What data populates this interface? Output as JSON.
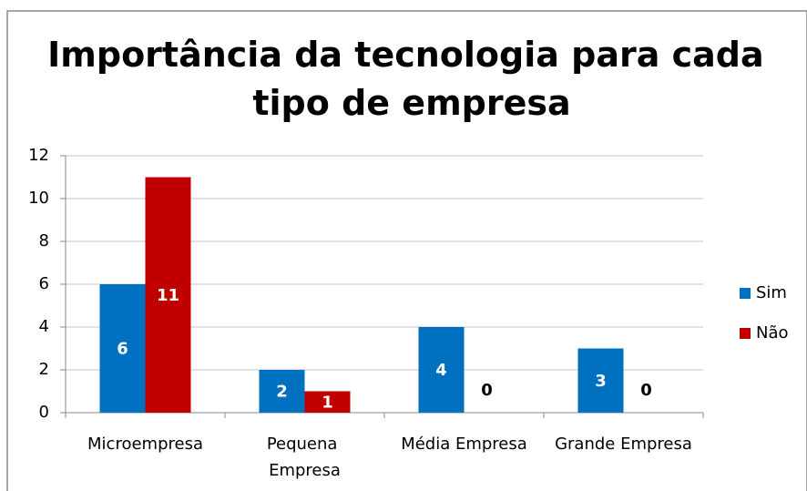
{
  "chart_data": {
    "type": "bar",
    "title": "Importância da tecnologia para cada tipo de empresa",
    "categories": [
      "Microempresa",
      "Pequena Empresa",
      "Média Empresa",
      "Grande Empresa"
    ],
    "series": [
      {
        "name": "Sim",
        "color": "#0070c0",
        "values": [
          6,
          2,
          4,
          3
        ]
      },
      {
        "name": "Não",
        "color": "#c00000",
        "values": [
          11,
          1,
          0,
          0
        ]
      }
    ],
    "ylim": [
      0,
      12
    ],
    "yticks": [
      0,
      2,
      4,
      6,
      8,
      10,
      12
    ],
    "grid": true,
    "legend": "right"
  }
}
